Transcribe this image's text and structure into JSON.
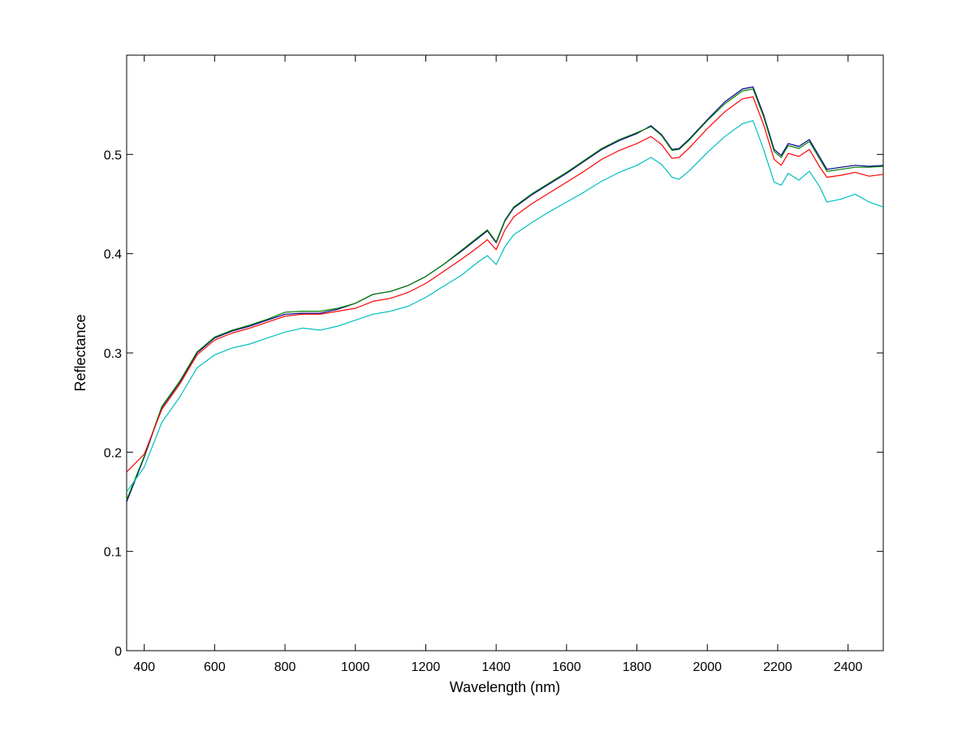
{
  "chart_data": {
    "type": "line",
    "title": "",
    "xlabel": "Wavelength (nm)",
    "ylabel": "Reflectance",
    "xlim": [
      350,
      2500
    ],
    "ylim": [
      0,
      0.6
    ],
    "x_ticks": [
      400,
      600,
      800,
      1000,
      1200,
      1400,
      1600,
      1800,
      2000,
      2200,
      2400
    ],
    "y_ticks": [
      0,
      0.1,
      0.2,
      0.3,
      0.4,
      0.5
    ],
    "y_tick_labels": [
      "0",
      "0.1",
      "0.2",
      "0.3",
      "0.4",
      "0.5"
    ],
    "grid": false,
    "legend": "none",
    "x": [
      350,
      400,
      450,
      500,
      550,
      600,
      650,
      700,
      750,
      800,
      850,
      900,
      950,
      1000,
      1050,
      1100,
      1150,
      1200,
      1250,
      1300,
      1350,
      1375,
      1400,
      1425,
      1450,
      1500,
      1550,
      1600,
      1650,
      1700,
      1750,
      1800,
      1840,
      1870,
      1900,
      1920,
      1950,
      2000,
      2050,
      2100,
      2130,
      2160,
      2190,
      2210,
      2230,
      2260,
      2290,
      2320,
      2340,
      2380,
      2420,
      2460,
      2500
    ],
    "series": [
      {
        "color": "#00008b",
        "values": [
          0.15,
          0.195,
          0.245,
          0.27,
          0.3,
          0.315,
          0.322,
          0.327,
          0.333,
          0.339,
          0.34,
          0.34,
          0.344,
          0.35,
          0.359,
          0.362,
          0.368,
          0.377,
          0.389,
          0.402,
          0.416,
          0.423,
          0.411,
          0.433,
          0.446,
          0.459,
          0.47,
          0.481,
          0.493,
          0.505,
          0.514,
          0.521,
          0.529,
          0.52,
          0.505,
          0.506,
          0.516,
          0.535,
          0.553,
          0.566,
          0.568,
          0.54,
          0.505,
          0.499,
          0.511,
          0.508,
          0.515,
          0.497,
          0.485,
          0.487,
          0.489,
          0.488,
          0.489
        ]
      },
      {
        "color": "#008000",
        "values": [
          0.152,
          0.196,
          0.246,
          0.271,
          0.301,
          0.316,
          0.323,
          0.328,
          0.334,
          0.341,
          0.342,
          0.342,
          0.345,
          0.35,
          0.359,
          0.362,
          0.368,
          0.377,
          0.389,
          0.403,
          0.417,
          0.424,
          0.412,
          0.434,
          0.447,
          0.46,
          0.471,
          0.482,
          0.494,
          0.506,
          0.515,
          0.522,
          0.528,
          0.519,
          0.504,
          0.505,
          0.515,
          0.534,
          0.551,
          0.564,
          0.566,
          0.538,
          0.503,
          0.497,
          0.509,
          0.506,
          0.513,
          0.495,
          0.483,
          0.485,
          0.487,
          0.487,
          0.488
        ]
      },
      {
        "color": "#ff0000",
        "values": [
          0.18,
          0.198,
          0.243,
          0.268,
          0.298,
          0.313,
          0.32,
          0.325,
          0.331,
          0.337,
          0.339,
          0.339,
          0.342,
          0.345,
          0.352,
          0.355,
          0.361,
          0.37,
          0.382,
          0.394,
          0.407,
          0.414,
          0.404,
          0.424,
          0.437,
          0.45,
          0.461,
          0.472,
          0.483,
          0.495,
          0.504,
          0.511,
          0.518,
          0.51,
          0.496,
          0.497,
          0.507,
          0.526,
          0.543,
          0.556,
          0.558,
          0.53,
          0.495,
          0.489,
          0.501,
          0.498,
          0.505,
          0.487,
          0.477,
          0.479,
          0.482,
          0.478,
          0.48
        ]
      },
      {
        "color": "#00bfbf",
        "values": [
          0.16,
          0.185,
          0.23,
          0.255,
          0.285,
          0.298,
          0.305,
          0.309,
          0.315,
          0.321,
          0.325,
          0.323,
          0.327,
          0.333,
          0.339,
          0.342,
          0.347,
          0.356,
          0.367,
          0.378,
          0.392,
          0.398,
          0.389,
          0.407,
          0.419,
          0.431,
          0.442,
          0.452,
          0.462,
          0.473,
          0.482,
          0.489,
          0.497,
          0.49,
          0.477,
          0.475,
          0.484,
          0.502,
          0.518,
          0.531,
          0.534,
          0.505,
          0.472,
          0.469,
          0.481,
          0.474,
          0.483,
          0.467,
          0.452,
          0.455,
          0.46,
          0.452,
          0.447
        ]
      }
    ]
  }
}
